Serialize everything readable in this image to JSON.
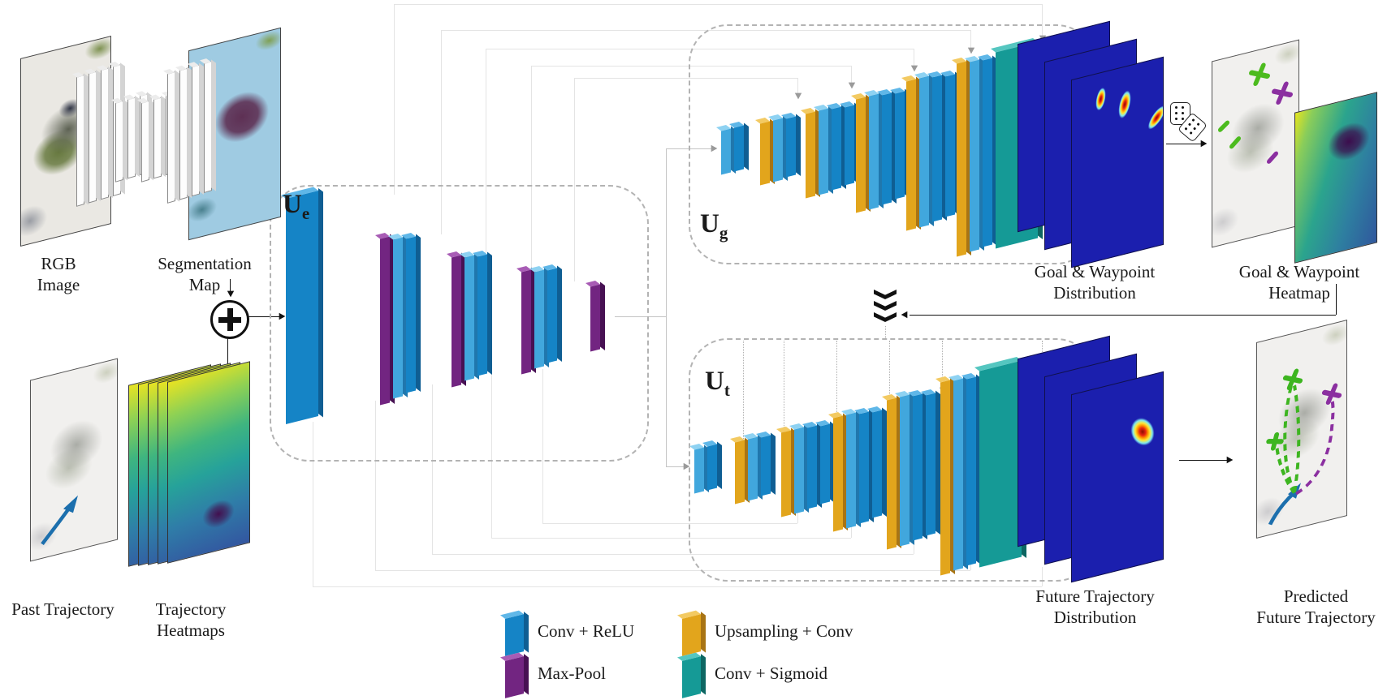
{
  "colors": {
    "conv_relu": "#1584c6",
    "conv_relu_light": "#41a7dd",
    "max_pool": "#722581",
    "upsampling_conv": "#e2a51c",
    "conv_sigmoid": "#159a96",
    "distribution_plane": "#1b1fae"
  },
  "inputs": {
    "rgb_image": {
      "label_line1": "RGB",
      "label_line2": "Image"
    },
    "segmentation_map": {
      "label_line1": "Segmentation",
      "label_line2": "Map"
    },
    "past_trajectory": {
      "label": "Past Trajectory"
    },
    "trajectory_heatmaps": {
      "label_line1": "Trajectory",
      "label_line2": "Heatmaps"
    }
  },
  "networks": {
    "encoder": {
      "base": "U",
      "sub": "e"
    },
    "goal_decoder": {
      "base": "U",
      "sub": "g"
    },
    "trajectory_decoder": {
      "base": "U",
      "sub": "t"
    }
  },
  "outputs": {
    "goal_waypoint_distribution": {
      "label_line1": "Goal & Waypoint",
      "label_line2": "Distribution"
    },
    "goal_waypoint_heatmap": {
      "label_line1": "Goal & Waypoint",
      "label_line2": "Heatmap"
    },
    "future_trajectory_distribution": {
      "label_line1": "Future Trajectory",
      "label_line2": "Distribution"
    },
    "predicted_future_trajectory": {
      "label_line1": "Predicted",
      "label_line2": "Future Trajectory"
    }
  },
  "legend": {
    "items": [
      {
        "name": "conv-relu",
        "label": "Conv + ReLU",
        "color": "#1584c6"
      },
      {
        "name": "max-pool",
        "label": "Max-Pool",
        "color": "#722581"
      },
      {
        "name": "upsampling-conv",
        "label": "Upsampling + Conv",
        "color": "#e2a51c"
      },
      {
        "name": "conv-sigmoid",
        "label": "Conv + Sigmoid",
        "color": "#159a96"
      }
    ]
  }
}
